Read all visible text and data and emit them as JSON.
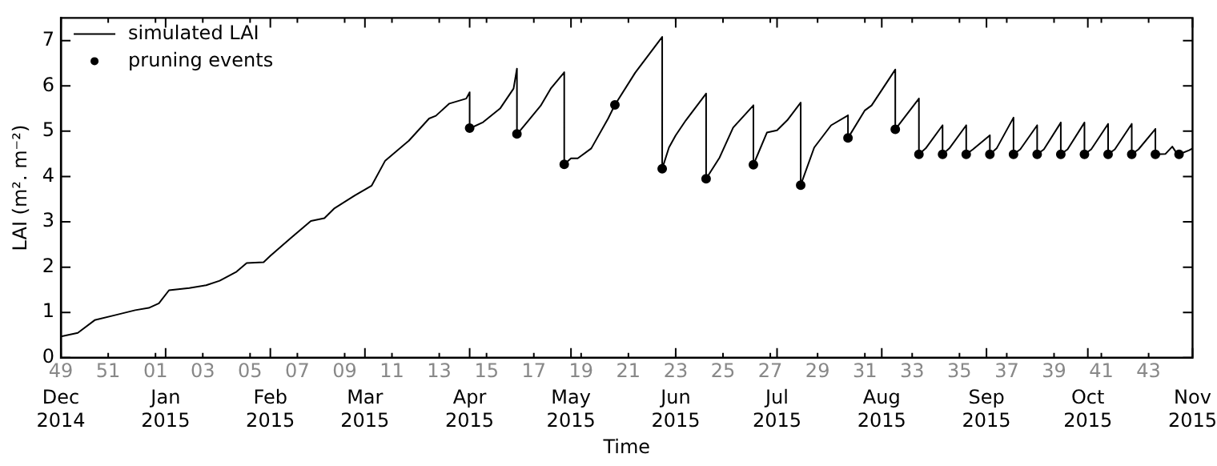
{
  "chart_data": {
    "type": "line",
    "xlabel": "Time",
    "ylabel": "LAI (m². m⁻²)",
    "ylim": [
      0,
      7.5
    ],
    "yticks": [
      0,
      1,
      2,
      3,
      4,
      5,
      6,
      7
    ],
    "xlim": [
      "2014-12-01",
      "2015-11-01"
    ],
    "xticks": [
      {
        "value": "2014-12-01",
        "label": "Dec 2014"
      },
      {
        "value": "2015-01-01",
        "label": "Jan 2015"
      },
      {
        "value": "2015-02-01",
        "label": "Feb 2015"
      },
      {
        "value": "2015-03-01",
        "label": "Mar 2015"
      },
      {
        "value": "2015-04-01",
        "label": "Apr 2015"
      },
      {
        "value": "2015-05-01",
        "label": "May 2015"
      },
      {
        "value": "2015-06-01",
        "label": "Jun 2015"
      },
      {
        "value": "2015-07-01",
        "label": "Jul 2015"
      },
      {
        "value": "2015-08-01",
        "label": "Aug 2015"
      },
      {
        "value": "2015-09-01",
        "label": "Sep 2015"
      },
      {
        "value": "2015-10-01",
        "label": "Oct 2015"
      },
      {
        "value": "2015-11-01",
        "label": "Nov 2015"
      }
    ],
    "x2lim": [
      "2014-12-01",
      "2015-11-01"
    ],
    "x2ticks": [
      {
        "value": "2014-12-01",
        "label": "49"
      },
      {
        "value": "2014-12-15",
        "label": "51"
      },
      {
        "value": "2014-12-29",
        "label": "01"
      },
      {
        "value": "2015-01-12",
        "label": "03"
      },
      {
        "value": "2015-01-26",
        "label": "05"
      },
      {
        "value": "2015-02-09",
        "label": "07"
      },
      {
        "value": "2015-02-23",
        "label": "09"
      },
      {
        "value": "2015-03-09",
        "label": "11"
      },
      {
        "value": "2015-03-23",
        "label": "13"
      },
      {
        "value": "2015-04-06",
        "label": "15"
      },
      {
        "value": "2015-04-20",
        "label": "17"
      },
      {
        "value": "2015-05-04",
        "label": "19"
      },
      {
        "value": "2015-05-18",
        "label": "21"
      },
      {
        "value": "2015-06-01",
        "label": "23"
      },
      {
        "value": "2015-06-15",
        "label": "25"
      },
      {
        "value": "2015-06-29",
        "label": "27"
      },
      {
        "value": "2015-07-13",
        "label": "29"
      },
      {
        "value": "2015-07-27",
        "label": "31"
      },
      {
        "value": "2015-08-10",
        "label": "33"
      },
      {
        "value": "2015-08-24",
        "label": "35"
      },
      {
        "value": "2015-09-07",
        "label": "37"
      },
      {
        "value": "2015-09-21",
        "label": "39"
      },
      {
        "value": "2015-10-05",
        "label": "41"
      },
      {
        "value": "2015-10-19",
        "label": "43"
      }
    ],
    "grid": false,
    "legend": "top left",
    "series": [
      {
        "name": "simulated LAI",
        "type": "line",
        "color": "#000000",
        "marker": "none",
        "x": [
          "2014-12-01",
          "2014-12-06",
          "2014-12-11",
          "2014-12-17",
          "2014-12-23",
          "2014-12-27",
          "2014-12-30",
          "2015-01-02",
          "2015-01-08",
          "2015-01-13",
          "2015-01-17",
          "2015-01-22",
          "2015-01-25",
          "2015-01-30",
          "2015-02-01",
          "2015-02-07",
          "2015-02-13",
          "2015-02-17",
          "2015-02-20",
          "2015-02-26",
          "2015-03-03",
          "2015-03-07",
          "2015-03-14",
          "2015-03-20",
          "2015-03-22",
          "2015-03-26",
          "2015-03-31",
          "2015-04-01",
          "2015-04-01",
          "2015-04-05",
          "2015-04-10",
          "2015-04-14",
          "2015-04-15",
          "2015-04-15",
          "2015-04-18",
          "2015-04-22",
          "2015-04-25",
          "2015-04-29",
          "2015-04-29",
          "2015-05-01",
          "2015-05-03",
          "2015-05-07",
          "2015-05-12",
          "2015-05-14",
          "2015-05-20",
          "2015-05-28",
          "2015-05-28",
          "2015-05-30",
          "2015-06-01",
          "2015-06-04",
          "2015-06-10",
          "2015-06-10",
          "2015-06-14",
          "2015-06-18",
          "2015-06-24",
          "2015-06-24",
          "2015-06-28",
          "2015-07-01",
          "2015-07-04",
          "2015-07-08",
          "2015-07-08",
          "2015-07-12",
          "2015-07-17",
          "2015-07-22",
          "2015-07-22",
          "2015-07-27",
          "2015-07-29",
          "2015-08-05",
          "2015-08-05",
          "2015-08-12",
          "2015-08-12",
          "2015-08-14",
          "2015-08-19",
          "2015-08-19",
          "2015-08-21",
          "2015-08-26",
          "2015-08-26",
          "2015-08-28",
          "2015-09-02",
          "2015-09-02",
          "2015-09-04",
          "2015-09-09",
          "2015-09-09",
          "2015-09-11",
          "2015-09-16",
          "2015-09-16",
          "2015-09-18",
          "2015-09-23",
          "2015-09-23",
          "2015-09-25",
          "2015-09-30",
          "2015-09-30",
          "2015-10-02",
          "2015-10-07",
          "2015-10-07",
          "2015-10-09",
          "2015-10-14",
          "2015-10-14",
          "2015-10-16",
          "2015-10-21",
          "2015-10-21",
          "2015-10-24",
          "2015-10-26",
          "2015-10-27",
          "2015-10-28",
          "2015-10-31",
          "2015-11-01"
        ],
        "values": [
          0.47,
          0.55,
          0.83,
          0.94,
          1.05,
          1.1,
          1.2,
          1.49,
          1.54,
          1.6,
          1.7,
          1.9,
          2.09,
          2.11,
          2.25,
          2.64,
          3.02,
          3.08,
          3.3,
          3.58,
          3.8,
          4.35,
          4.79,
          5.28,
          5.34,
          5.61,
          5.72,
          5.86,
          5.06,
          5.2,
          5.5,
          5.94,
          6.38,
          4.93,
          5.2,
          5.56,
          5.94,
          6.3,
          4.27,
          4.4,
          4.4,
          4.62,
          5.28,
          5.58,
          6.29,
          7.08,
          4.17,
          4.64,
          4.91,
          5.24,
          5.83,
          3.95,
          4.42,
          5.08,
          5.57,
          4.26,
          4.97,
          5.02,
          5.24,
          5.63,
          3.81,
          4.64,
          5.13,
          5.35,
          4.85,
          5.46,
          5.57,
          6.36,
          5.04,
          5.72,
          4.49,
          4.62,
          5.13,
          4.49,
          4.62,
          5.13,
          4.49,
          4.6,
          4.91,
          4.49,
          4.62,
          5.3,
          4.49,
          4.6,
          5.13,
          4.49,
          4.6,
          5.19,
          4.49,
          4.6,
          5.19,
          4.49,
          4.6,
          5.16,
          4.49,
          4.6,
          5.16,
          4.49,
          4.6,
          5.05,
          4.49,
          4.5,
          4.66,
          4.55,
          4.49,
          4.58,
          4.62
        ]
      },
      {
        "name": "pruning events",
        "type": "scatter",
        "color": "#000000",
        "marker": "circle",
        "x": [
          "2015-04-01",
          "2015-04-15",
          "2015-04-29",
          "2015-05-14",
          "2015-05-28",
          "2015-06-10",
          "2015-06-24",
          "2015-07-08",
          "2015-07-22",
          "2015-08-05",
          "2015-08-12",
          "2015-08-19",
          "2015-08-26",
          "2015-09-02",
          "2015-09-09",
          "2015-09-16",
          "2015-09-23",
          "2015-09-30",
          "2015-10-07",
          "2015-10-14",
          "2015-10-21",
          "2015-10-28"
        ],
        "values": [
          5.07,
          4.94,
          4.27,
          5.58,
          4.17,
          3.95,
          4.26,
          3.81,
          4.85,
          5.04,
          4.49,
          4.49,
          4.49,
          4.49,
          4.49,
          4.49,
          4.49,
          4.49,
          4.49,
          4.49,
          4.49,
          4.49
        ]
      }
    ]
  }
}
